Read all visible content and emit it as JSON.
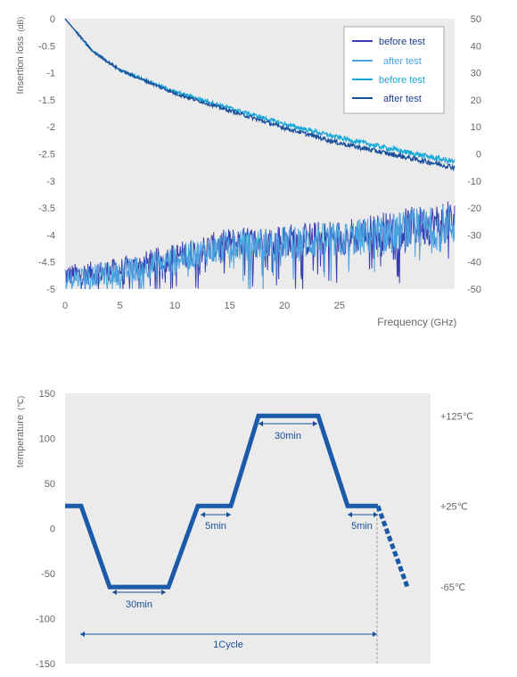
{
  "chart_data": [
    {
      "type": "line",
      "xlabel": "Frequency",
      "xunit": "(GHz)",
      "ylabel": "Insertion loss",
      "yunit": "(dB)",
      "xlim": [
        0,
        35.5
      ],
      "ylim": [
        -5,
        0
      ],
      "y2lim": [
        -50,
        50
      ],
      "x_ticks": [
        0,
        5,
        10,
        15,
        20,
        25
      ],
      "y_ticks": [
        0,
        -0.5,
        -1,
        -1.5,
        -2,
        -2.5,
        -3,
        -3.5,
        -4,
        -4.5,
        -5
      ],
      "y2_ticks": [
        50,
        40,
        30,
        20,
        10,
        0,
        -10,
        -20,
        -30,
        -40,
        -50
      ],
      "legend_position": "top-right",
      "series": [
        {
          "name": "before test",
          "axis": "right",
          "color": "#3a3fb0",
          "curve": "return_loss",
          "x": [
            0,
            5,
            10,
            15,
            20,
            25,
            30,
            35.5
          ],
          "y": [
            -45,
            -43,
            -38,
            -33,
            -32,
            -31,
            -28,
            -25
          ]
        },
        {
          "name": "after test",
          "axis": "right",
          "color": "#4aa3e0",
          "curve": "return_loss",
          "x": [
            0,
            5,
            10,
            15,
            20,
            25,
            30,
            35.5
          ],
          "y": [
            -46,
            -44,
            -39,
            -34,
            -33,
            -32,
            -29,
            -26
          ]
        },
        {
          "name": "before test",
          "axis": "left",
          "color": "#16a8d8",
          "curve": "insertion_loss",
          "x": [
            0,
            2.5,
            5,
            10,
            15,
            20,
            25,
            30,
            35.5
          ],
          "y": [
            0,
            -0.6,
            -0.95,
            -1.35,
            -1.65,
            -1.95,
            -2.2,
            -2.42,
            -2.65
          ]
        },
        {
          "name": "after test",
          "axis": "left",
          "color": "#1a4f9c",
          "curve": "insertion_loss",
          "x": [
            0,
            2.5,
            5,
            10,
            15,
            20,
            25,
            30,
            35.5
          ],
          "y": [
            0,
            -0.6,
            -0.95,
            -1.38,
            -1.7,
            -2.02,
            -2.3,
            -2.52,
            -2.75
          ]
        }
      ]
    },
    {
      "type": "line",
      "ylabel": "temperature",
      "yunit": "(℃)",
      "ylim": [
        -150,
        150
      ],
      "y_ticks": [
        150,
        100,
        50,
        0,
        -50,
        -100,
        -150
      ],
      "right_labels": [
        {
          "text": "+125℃",
          "value": 125
        },
        {
          "text": "+25℃",
          "value": 25
        },
        {
          "text": "-65℃",
          "value": -65
        }
      ],
      "profile": {
        "color": "#1a5aa8",
        "segments": [
          "hold 25",
          "ramp to -65",
          "hold -65",
          "ramp to 25",
          "hold 25",
          "ramp to 125",
          "hold 125",
          "ramp to 25",
          "hold 25",
          "ramp to -65 (continues)"
        ],
        "t": [
          0,
          1,
          3,
          6,
          9,
          10,
          13,
          16,
          18,
          19,
          22,
          24,
          27
        ],
        "temp": [
          25,
          25,
          -65,
          -65,
          25,
          25,
          25,
          125,
          125,
          25,
          25,
          -65,
          -65
        ]
      },
      "annotations": [
        {
          "text": "30min",
          "phase": "cold hold"
        },
        {
          "text": "5min",
          "phase": "ambient hold 1"
        },
        {
          "text": "30min",
          "phase": "hot hold"
        },
        {
          "text": "5min",
          "phase": "ambient hold 2"
        },
        {
          "text": "1Cycle",
          "phase": "full cycle"
        }
      ]
    }
  ]
}
